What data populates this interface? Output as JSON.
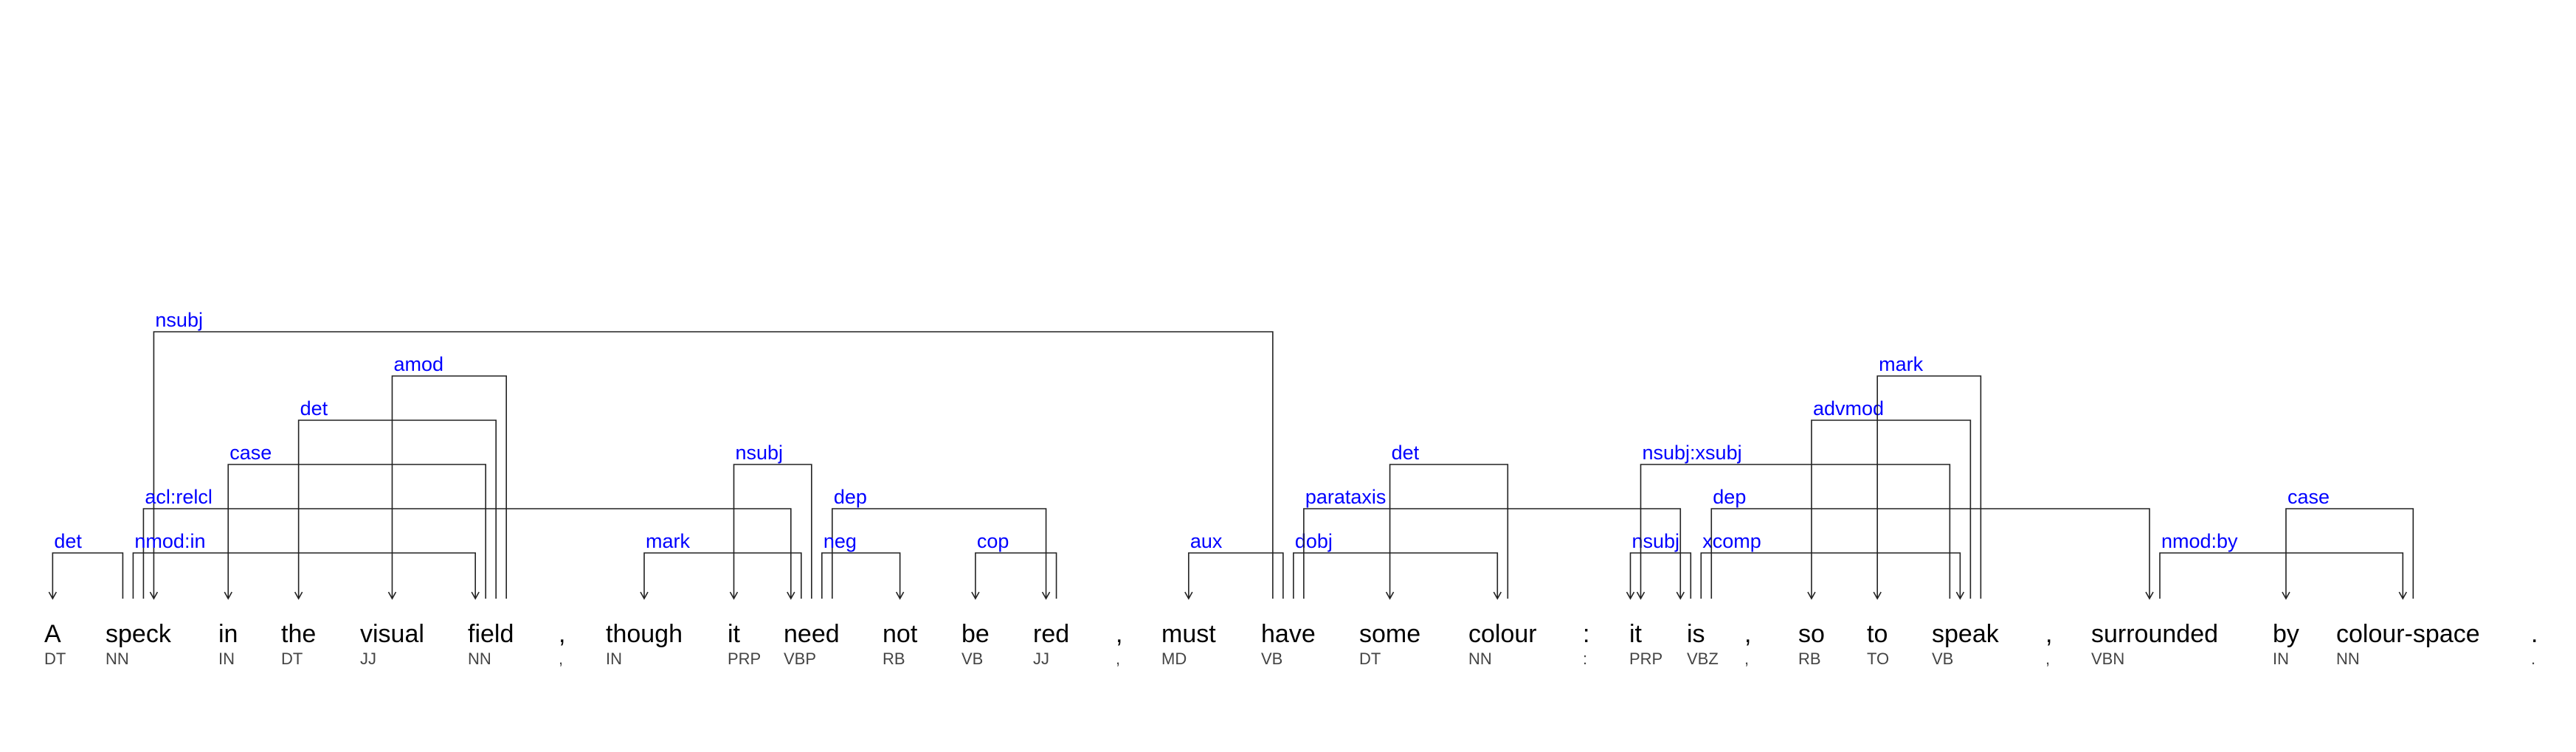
{
  "colors": {
    "label": "#0000ff",
    "text": "#000000",
    "tag": "#444444",
    "line": "#222222"
  },
  "tokens": [
    {
      "word": "A",
      "tag": "DT"
    },
    {
      "word": "speck",
      "tag": "NN"
    },
    {
      "word": "in",
      "tag": "IN"
    },
    {
      "word": "the",
      "tag": "DT"
    },
    {
      "word": "visual",
      "tag": "JJ"
    },
    {
      "word": "field",
      "tag": "NN"
    },
    {
      "word": ",",
      "tag": ","
    },
    {
      "word": "though",
      "tag": "IN"
    },
    {
      "word": "it",
      "tag": "PRP"
    },
    {
      "word": "need",
      "tag": "VBP"
    },
    {
      "word": "not",
      "tag": "RB"
    },
    {
      "word": "be",
      "tag": "VB"
    },
    {
      "word": "red",
      "tag": "JJ"
    },
    {
      "word": ",",
      "tag": ","
    },
    {
      "word": "must",
      "tag": "MD"
    },
    {
      "word": "have",
      "tag": "VB"
    },
    {
      "word": "some",
      "tag": "DT"
    },
    {
      "word": "colour",
      "tag": "NN"
    },
    {
      "word": ":",
      "tag": ":"
    },
    {
      "word": "it",
      "tag": "PRP"
    },
    {
      "word": "is",
      "tag": "VBZ"
    },
    {
      "word": ",",
      "tag": ","
    },
    {
      "word": "so",
      "tag": "RB"
    },
    {
      "word": "to",
      "tag": "TO"
    },
    {
      "word": "speak",
      "tag": "VB"
    },
    {
      "word": ",",
      "tag": ","
    },
    {
      "word": "surrounded",
      "tag": "VBN"
    },
    {
      "word": "by",
      "tag": "IN"
    },
    {
      "word": "colour-space",
      "tag": "NN"
    },
    {
      "word": ".",
      "tag": "."
    }
  ],
  "arcs": [
    {
      "label": "det",
      "head": 1,
      "dep": 0,
      "level": 1
    },
    {
      "label": "nsubj",
      "head": 15,
      "dep": 1,
      "level": 6
    },
    {
      "label": "acl:relcl",
      "head": 1,
      "dep": 9,
      "level": 2
    },
    {
      "label": "nmod:in",
      "head": 1,
      "dep": 5,
      "level": 1
    },
    {
      "label": "case",
      "head": 5,
      "dep": 2,
      "level": 3
    },
    {
      "label": "det",
      "head": 5,
      "dep": 3,
      "level": 4
    },
    {
      "label": "amod",
      "head": 5,
      "dep": 4,
      "level": 5
    },
    {
      "label": "mark",
      "head": 9,
      "dep": 7,
      "level": 1
    },
    {
      "label": "nsubj",
      "head": 9,
      "dep": 8,
      "level": 3
    },
    {
      "label": "dep",
      "head": 9,
      "dep": 12,
      "level": 2
    },
    {
      "label": "neg",
      "head": 9,
      "dep": 10,
      "level": 1
    },
    {
      "label": "cop",
      "head": 12,
      "dep": 11,
      "level": 1
    },
    {
      "label": "aux",
      "head": 15,
      "dep": 14,
      "level": 1
    },
    {
      "label": "dobj",
      "head": 15,
      "dep": 17,
      "level": 1
    },
    {
      "label": "parataxis",
      "head": 15,
      "dep": 20,
      "level": 2
    },
    {
      "label": "det",
      "head": 17,
      "dep": 16,
      "level": 3
    },
    {
      "label": "nsubj",
      "head": 20,
      "dep": 19,
      "level": 1
    },
    {
      "label": "nsubj:xsubj",
      "head": 24,
      "dep": 19,
      "level": 3
    },
    {
      "label": "xcomp",
      "head": 20,
      "dep": 24,
      "level": 1
    },
    {
      "label": "dep",
      "head": 20,
      "dep": 26,
      "level": 2
    },
    {
      "label": "advmod",
      "head": 24,
      "dep": 22,
      "level": 4
    },
    {
      "label": "mark",
      "head": 24,
      "dep": 23,
      "level": 5
    },
    {
      "label": "nmod:by",
      "head": 26,
      "dep": 28,
      "level": 1
    },
    {
      "label": "case",
      "head": 28,
      "dep": 27,
      "level": 2
    }
  ]
}
